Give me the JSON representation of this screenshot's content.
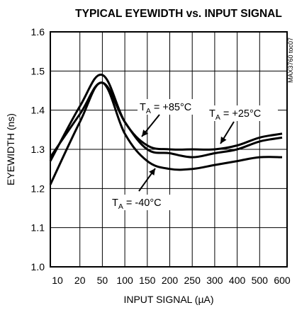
{
  "chart_data": {
    "type": "line",
    "title": "TYPICAL EYEWIDTH vs. INPUT SIGNAL",
    "xlabel": "INPUT SIGNAL (µA)",
    "ylabel": "EYEWIDTH (ns)",
    "side_label": "MAX3760 toc07",
    "x_ticks": [
      "10",
      "20",
      "50",
      "100",
      "150",
      "200",
      "250",
      "300",
      "400",
      "500",
      "600"
    ],
    "y_ticks": [
      "1.0",
      "1.1",
      "1.2",
      "1.3",
      "1.4",
      "1.5",
      "1.6"
    ],
    "ylim": [
      1.0,
      1.6
    ],
    "grid": true,
    "x_scale": "categorical, evenly spaced tick labels",
    "series": [
      {
        "name": "T_A = +85°C",
        "x": [
          "10",
          "20",
          "50",
          "100",
          "150",
          "200",
          "250",
          "300",
          "400",
          "500",
          "600"
        ],
        "values": [
          1.27,
          1.41,
          1.49,
          1.37,
          1.31,
          1.3,
          1.3,
          1.3,
          1.31,
          1.33,
          1.34
        ]
      },
      {
        "name": "T_A = +25°C",
        "x": [
          "10",
          "20",
          "50",
          "100",
          "150",
          "200",
          "250",
          "300",
          "400",
          "500",
          "600"
        ],
        "values": [
          1.28,
          1.39,
          1.47,
          1.37,
          1.3,
          1.29,
          1.28,
          1.29,
          1.3,
          1.32,
          1.33
        ]
      },
      {
        "name": "T_A = -40°C",
        "x": [
          "10",
          "20",
          "50",
          "100",
          "150",
          "200",
          "250",
          "300",
          "400",
          "500",
          "600"
        ],
        "values": [
          1.21,
          1.37,
          1.47,
          1.34,
          1.27,
          1.25,
          1.25,
          1.26,
          1.27,
          1.28,
          1.28
        ]
      }
    ],
    "annotations": [
      {
        "main": "T",
        "sub": "A",
        "rest": " = +85°C",
        "series": 0
      },
      {
        "main": "T",
        "sub": "A",
        "rest": " = +25°C",
        "series": 1
      },
      {
        "main": "T",
        "sub": "A",
        "rest": " = -40°C",
        "series": 2
      }
    ],
    "line_color": "#000000"
  }
}
